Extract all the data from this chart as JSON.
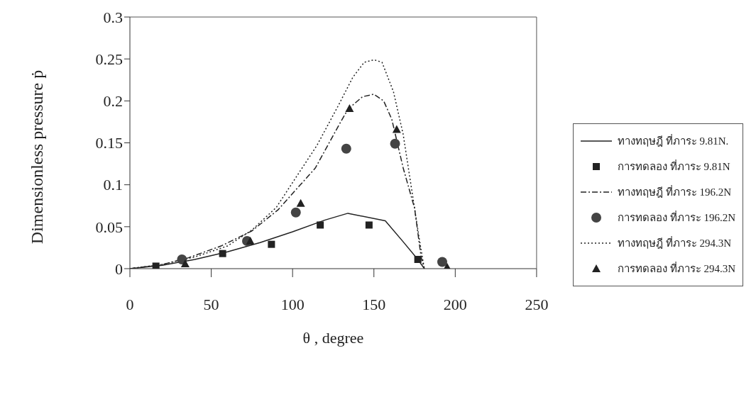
{
  "chart_data": {
    "type": "line",
    "xlabel": "θ , degree",
    "ylabel": "Dimensionless pressure ṗ",
    "xlim": [
      0,
      250
    ],
    "xticks": [
      0,
      50,
      100,
      150,
      200,
      250
    ],
    "ylim": [
      0,
      0.3
    ],
    "yticks": [
      0,
      0.05,
      0.1,
      0.15,
      0.2,
      0.25,
      0.3
    ],
    "grid": false,
    "legend": "right",
    "series": [
      {
        "name": "ทางทฤษฎี ที่ภาระ 9.81N.",
        "color": "#222222",
        "line_style": "solid",
        "marker": "none",
        "x": [
          0,
          20,
          40,
          60,
          80,
          100,
          120,
          134,
          157,
          168,
          177,
          181
        ],
        "values": [
          0,
          0.004,
          0.011,
          0.02,
          0.031,
          0.044,
          0.058,
          0.066,
          0.057,
          0.032,
          0.011,
          0
        ]
      },
      {
        "name": "การทดลอง ที่ภาระ 9.81N",
        "type": "scatter",
        "color": "#222222",
        "marker": "square",
        "x": [
          16,
          57,
          87,
          117,
          147,
          177
        ],
        "values": [
          0.003,
          0.018,
          0.029,
          0.052,
          0.052,
          0.011
        ]
      },
      {
        "name": "ทางทฤษฎี ที่ภาระ 196.2N",
        "color": "#222222",
        "line_style": "dashed",
        "marker": "none",
        "x": [
          0,
          20,
          36,
          56,
          75,
          91,
          114,
          129,
          134,
          143,
          150,
          156,
          161,
          168,
          175,
          179,
          181
        ],
        "values": [
          0,
          0.005,
          0.013,
          0.027,
          0.045,
          0.07,
          0.12,
          0.173,
          0.19,
          0.205,
          0.208,
          0.2,
          0.178,
          0.12,
          0.072,
          0.014,
          0
        ]
      },
      {
        "name": "การทดลอง ที่ภาระ 196.2N",
        "type": "scatter",
        "color": "#444444",
        "marker": "circle",
        "x": [
          32,
          72,
          102,
          133,
          163,
          192
        ],
        "values": [
          0.011,
          0.033,
          0.067,
          0.143,
          0.149,
          0.008
        ]
      },
      {
        "name": "ทางทฤษฎี ที่ภาระ 294.3N",
        "color": "#222222",
        "line_style": "dotted",
        "marker": "none",
        "x": [
          0,
          20,
          40,
          60,
          75,
          90,
          115,
          128,
          137,
          144,
          150,
          155,
          162,
          168,
          173,
          178,
          181
        ],
        "values": [
          0,
          0.005,
          0.014,
          0.027,
          0.046,
          0.073,
          0.147,
          0.194,
          0.228,
          0.246,
          0.249,
          0.246,
          0.211,
          0.16,
          0.097,
          0.034,
          0
        ]
      },
      {
        "name": "การทดลอง ที่ภาระ 294.3N",
        "type": "scatter",
        "color": "#222222",
        "marker": "triangle",
        "x": [
          34,
          74,
          105,
          135,
          164,
          195
        ],
        "values": [
          0.006,
          0.033,
          0.078,
          0.191,
          0.166,
          0.002
        ]
      }
    ]
  }
}
